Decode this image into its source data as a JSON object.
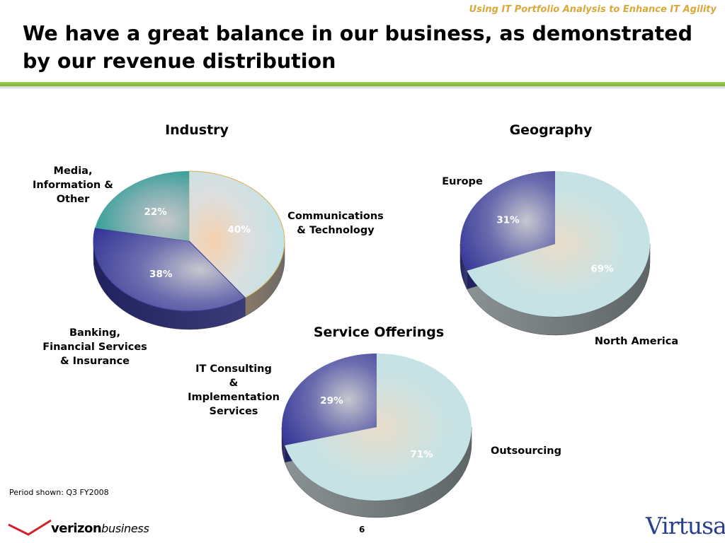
{
  "header": {
    "tagline": "Using IT Portfolio Analysis to Enhance IT Agility",
    "title_line1": "We have a great balance in our business, as demonstrated",
    "title_line2": "by our revenue distribution"
  },
  "chart_data": [
    {
      "type": "pie",
      "title": "Industry",
      "slices": [
        {
          "label": "Communications & Technology",
          "value": 40,
          "value_label": "40%"
        },
        {
          "label": "Banking, Financial Services & Insurance",
          "value": 38,
          "value_label": "38%"
        },
        {
          "label": "Media, Information & Other",
          "value": 22,
          "value_label": "22%"
        }
      ]
    },
    {
      "type": "pie",
      "title": "Geography",
      "slices": [
        {
          "label": "North America",
          "value": 69,
          "value_label": "69%"
        },
        {
          "label": "Europe",
          "value": 31,
          "value_label": "31%"
        }
      ]
    },
    {
      "type": "pie",
      "title": "Service Offerings",
      "slices": [
        {
          "label": "Outsourcing",
          "value": 71,
          "value_label": "71%"
        },
        {
          "label": "IT Consulting & Implementation Services",
          "value": 29,
          "value_label": "29%"
        }
      ]
    }
  ],
  "labels": {
    "comm_tech": [
      "Communications",
      "& Technology"
    ],
    "banking": [
      "Banking,",
      "Financial Services",
      "& Insurance"
    ],
    "media": [
      "Media,",
      "Information &",
      "Other"
    ],
    "europe": [
      "Europe"
    ],
    "north_america": [
      "North America"
    ],
    "it_consulting": [
      "IT Consulting",
      "&",
      "Implementation",
      "Services"
    ],
    "outsourcing": [
      "Outsourcing"
    ]
  },
  "footer": {
    "period": "Period shown: Q3 FY2008",
    "page_number": "6",
    "logo_left_bold": "verizon",
    "logo_left_italic": "business",
    "logo_right": "Virtusa"
  },
  "colors": {
    "tagline": "#d9a83a",
    "accent_rule": "#8dbf42",
    "slice_light": "#c0e2e6",
    "slice_dark": "#2e2f96",
    "slice_teal": "#1a9a90"
  }
}
